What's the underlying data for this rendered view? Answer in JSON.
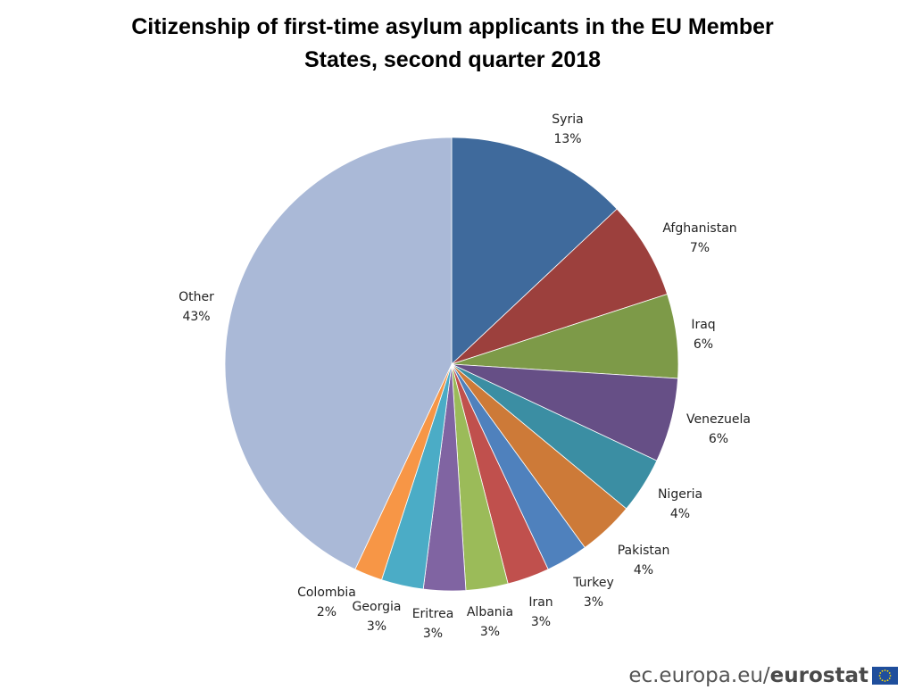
{
  "chart_data": {
    "type": "pie",
    "title": "Citizenship of first-time asylum applicants in the EU Member States, second quarter 2018",
    "title_lines": [
      "Citizenship of first-time asylum applicants in the EU Member",
      "States, second quarter 2018"
    ],
    "start_angle": "12 o'clock",
    "direction": "clockwise",
    "slices": [
      {
        "label": "Syria",
        "value": 13,
        "value_label": "13%",
        "color": "#3f6a9c"
      },
      {
        "label": "Afghanistan",
        "value": 7,
        "value_label": "7%",
        "color": "#9c403d"
      },
      {
        "label": "Iraq",
        "value": 6,
        "value_label": "6%",
        "color": "#7d9a48"
      },
      {
        "label": "Venezuela",
        "value": 6,
        "value_label": "6%",
        "color": "#664f86"
      },
      {
        "label": "Nigeria",
        "value": 4,
        "value_label": "4%",
        "color": "#3b8ea3"
      },
      {
        "label": "Pakistan",
        "value": 4,
        "value_label": "4%",
        "color": "#cd7a38"
      },
      {
        "label": "Turkey",
        "value": 3,
        "value_label": "3%",
        "color": "#4f81bd"
      },
      {
        "label": "Iran",
        "value": 3,
        "value_label": "3%",
        "color": "#c0504d"
      },
      {
        "label": "Albania",
        "value": 3,
        "value_label": "3%",
        "color": "#9bbb59"
      },
      {
        "label": "Eritrea",
        "value": 3,
        "value_label": "3%",
        "color": "#8064a2"
      },
      {
        "label": "Georgia",
        "value": 3,
        "value_label": "3%",
        "color": "#4bacc6"
      },
      {
        "label": "Colombia",
        "value": 2,
        "value_label": "2%",
        "color": "#f79646"
      },
      {
        "label": "Other",
        "value": 43,
        "value_label": "43%",
        "color": "#aab9d7"
      }
    ]
  },
  "footer": {
    "site": "ec.europa.eu/",
    "brand": "eurostat",
    "flag_color": "#1f4e9c",
    "star_color": "#ffdd00"
  }
}
